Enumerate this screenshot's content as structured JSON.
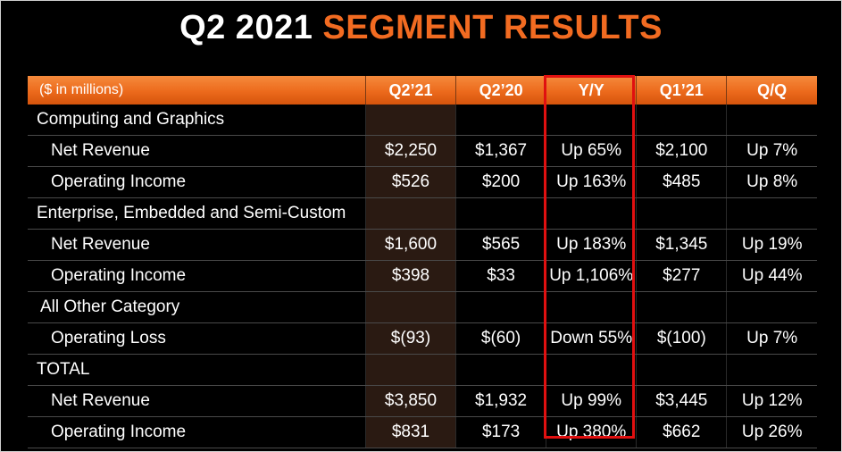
{
  "title": {
    "part1": "Q2 2021",
    "part2": "SEGMENT RESULTS"
  },
  "table": {
    "header": [
      "($ in millions)",
      "Q2’21",
      "Q2’20",
      "Y/Y",
      "Q1’21",
      "Q/Q"
    ],
    "rows": [
      {
        "label": "Computing and Graphics",
        "values": [
          "",
          "",
          "",
          "",
          ""
        ]
      },
      {
        "label": "Net Revenue",
        "values": [
          "$2,250",
          "$1,367",
          "Up 65%",
          "$2,100",
          "Up 7%"
        ]
      },
      {
        "label": "Operating Income",
        "values": [
          "$526",
          "$200",
          "Up 163%",
          "$485",
          "Up 8%"
        ]
      },
      {
        "label": "Enterprise, Embedded and Semi-Custom",
        "values": [
          "",
          "",
          "",
          "",
          ""
        ]
      },
      {
        "label": "Net Revenue",
        "values": [
          "$1,600",
          "$565",
          "Up 183%",
          "$1,345",
          "Up 19%"
        ]
      },
      {
        "label": "Operating Income",
        "values": [
          "$398",
          "$33",
          "Up 1,106%",
          "$277",
          "Up 44%"
        ]
      },
      {
        "label": "All Other Category",
        "values": [
          "",
          "",
          "",
          "",
          ""
        ]
      },
      {
        "label": "Operating Loss",
        "values": [
          "$(93)",
          "$(60)",
          "Down 55%",
          "$(100)",
          "Up 7%"
        ]
      },
      {
        "label": "TOTAL",
        "values": [
          "",
          "",
          "",
          "",
          ""
        ]
      },
      {
        "label": "Net Revenue",
        "values": [
          "$3,850",
          "$1,932",
          "Up 99%",
          "$3,445",
          "Up 12%"
        ]
      },
      {
        "label": "Operating Income",
        "values": [
          "$831",
          "$173",
          "Up 380%",
          "$662",
          "Up 26%"
        ]
      }
    ]
  },
  "colors": {
    "accent": "#f26b21",
    "highlight_box": "#e01010",
    "highlight_column": "#2a1a12"
  }
}
